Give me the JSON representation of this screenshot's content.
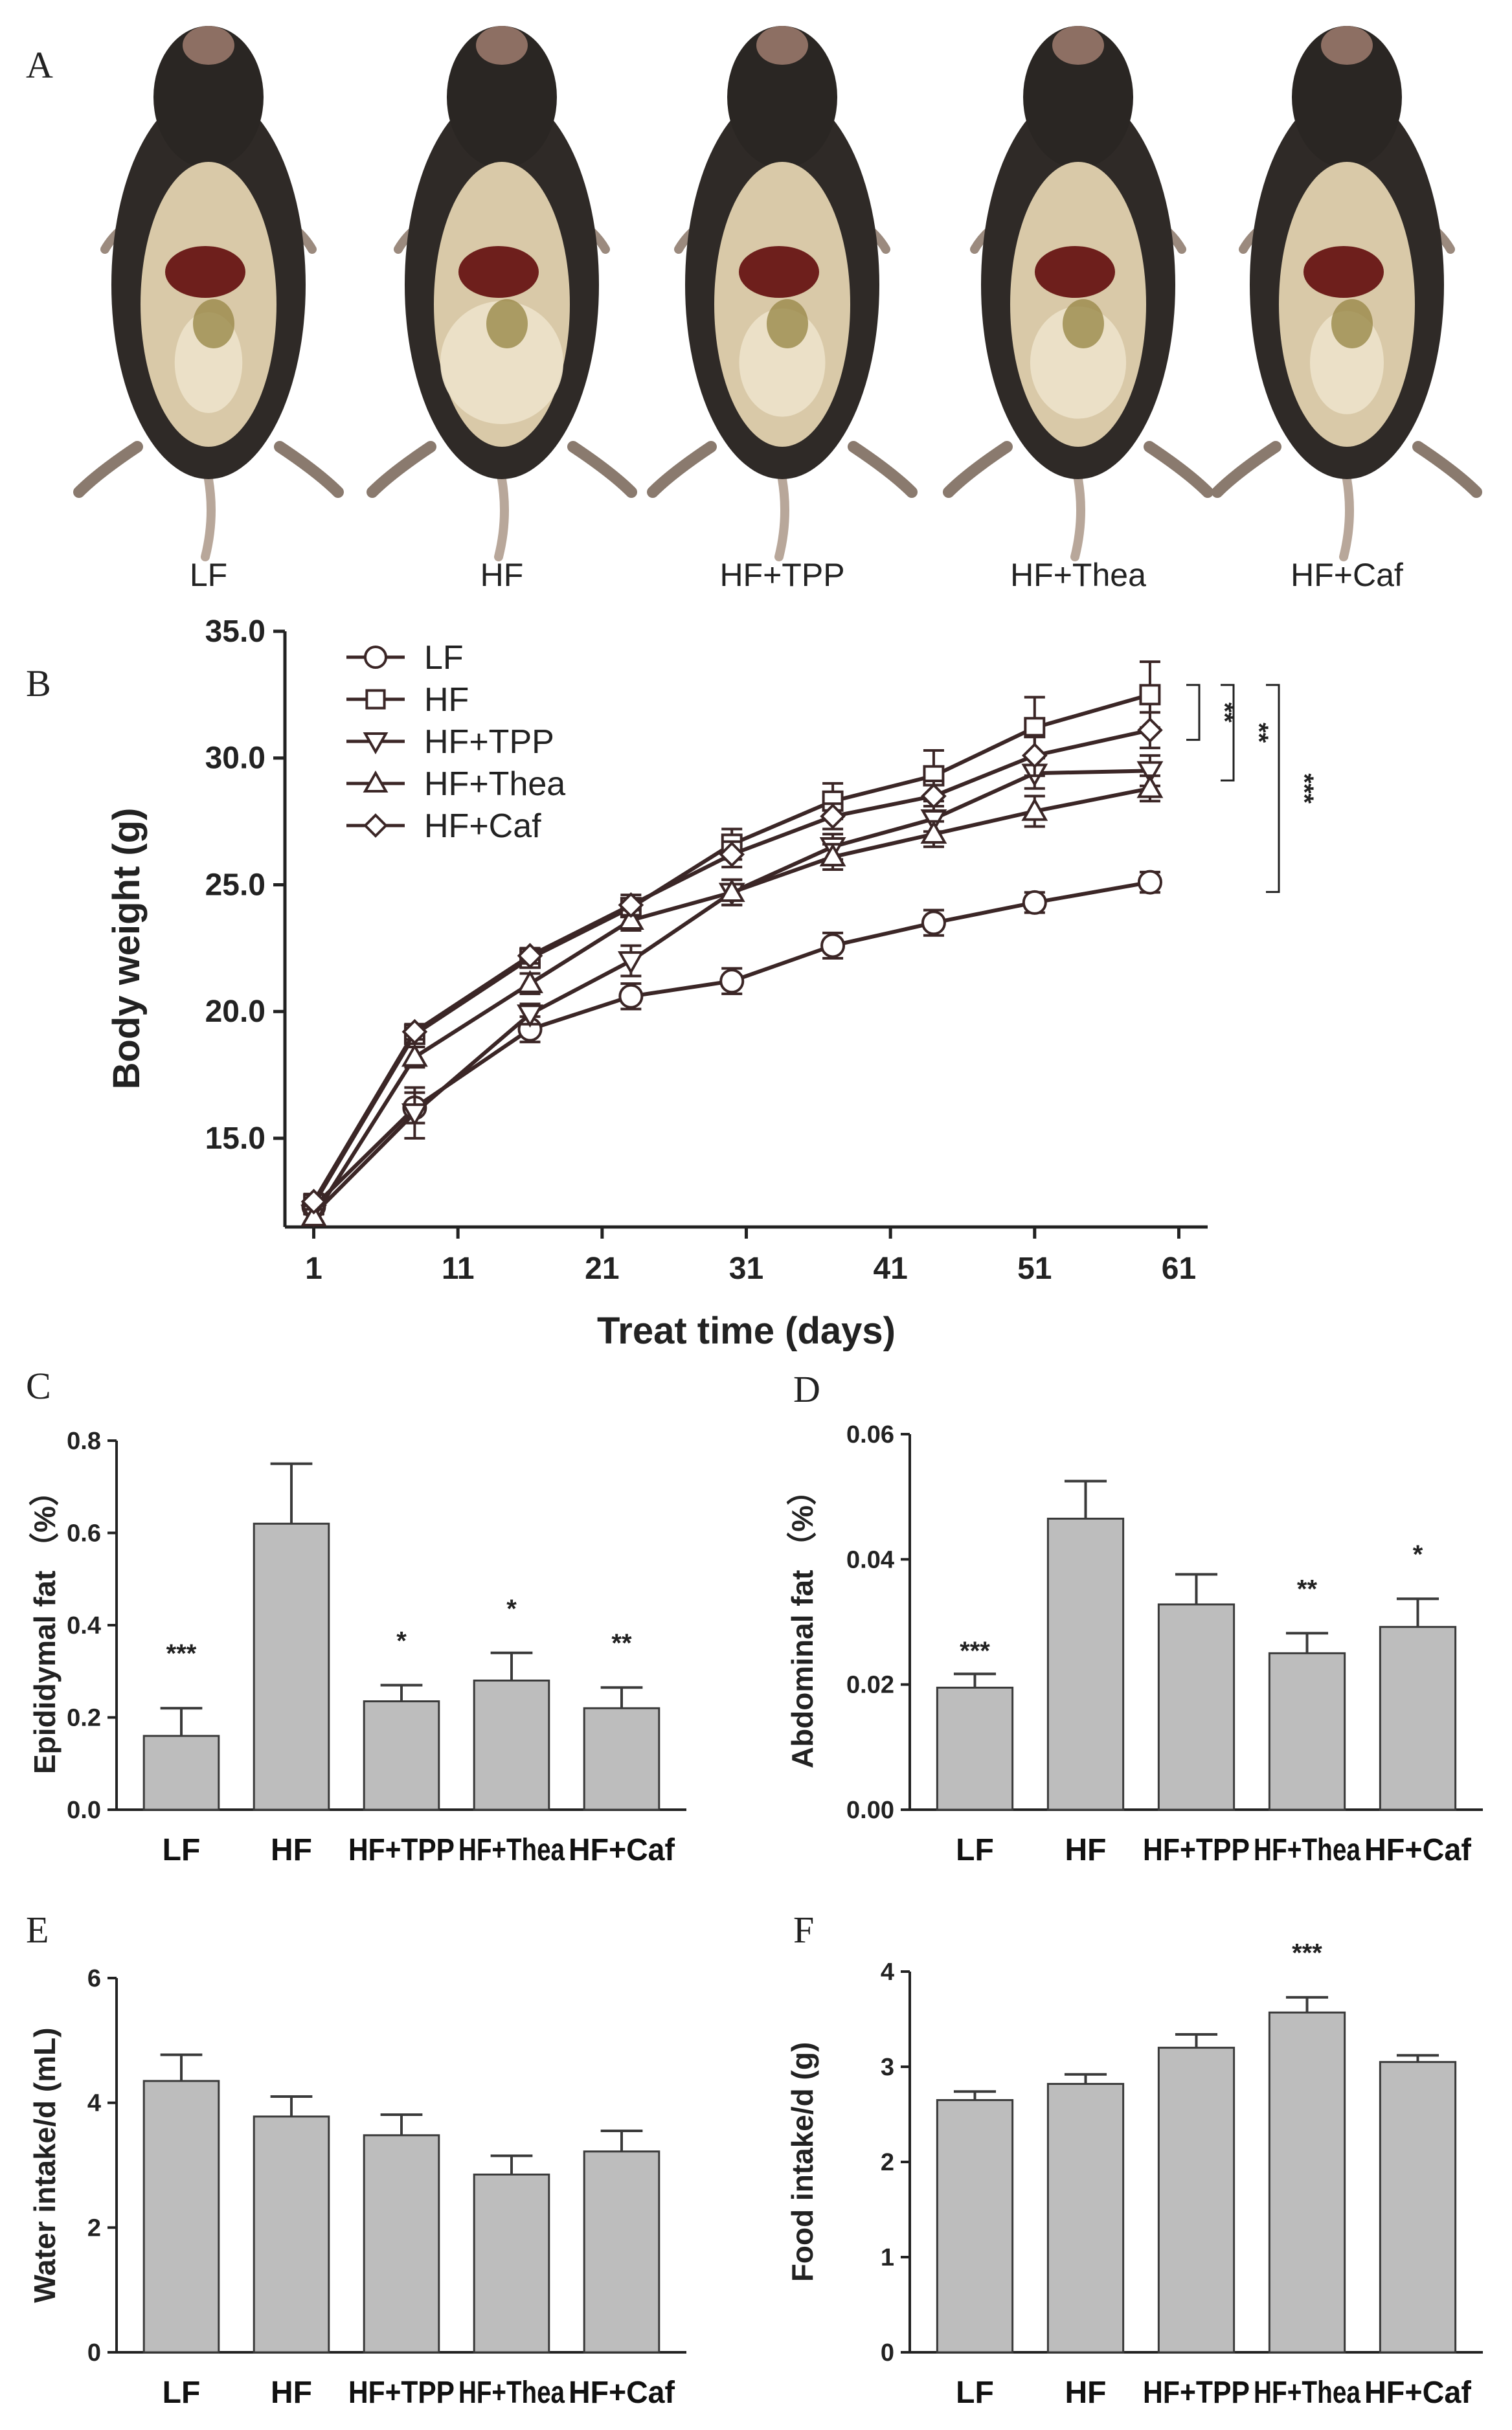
{
  "panel_letters": {
    "a": "A",
    "b": "B",
    "c": "C",
    "d": "D",
    "e": "E",
    "f": "F"
  },
  "photos": {
    "labels": [
      "LF",
      "HF",
      "HF+TPP",
      "HF+Thea",
      "HF+Caf"
    ]
  },
  "colors": {
    "bar_fill": "#bdbdbd",
    "bar_stroke": "#3a3a3a",
    "line": "#3b2626",
    "axis": "#222222"
  },
  "chart_data": [
    {
      "id": "B",
      "type": "line",
      "title": "",
      "xlabel": "Treat time (days)",
      "ylabel": "Body weight (g)",
      "xlim": [
        -1,
        63
      ],
      "ylim": [
        11.5,
        35.0
      ],
      "xticks": [
        "1",
        "11",
        "21",
        "31",
        "41",
        "51",
        "61"
      ],
      "xtick_values": [
        1,
        11,
        21,
        31,
        41,
        51,
        61
      ],
      "yticks": [
        "15.0",
        "20.0",
        "25.0",
        "30.0",
        "35.0"
      ],
      "ytick_values": [
        15,
        20,
        25,
        30,
        35
      ],
      "x": [
        1,
        8,
        16,
        23,
        30,
        37,
        44,
        51,
        59
      ],
      "series": [
        {
          "name": "LF",
          "marker": "circle",
          "values": [
            12.3,
            16.2,
            19.3,
            20.6,
            21.2,
            22.6,
            23.5,
            24.3,
            25.1
          ],
          "errors": [
            0.3,
            0.6,
            0.5,
            0.5,
            0.5,
            0.5,
            0.5,
            0.4,
            0.4
          ]
        },
        {
          "name": "HF",
          "marker": "square",
          "values": [
            12.4,
            19.1,
            22.1,
            24.1,
            26.6,
            28.3,
            29.3,
            31.2,
            32.5
          ],
          "errors": [
            0.3,
            0.3,
            0.3,
            0.3,
            0.6,
            0.7,
            1.0,
            1.2,
            1.3
          ]
        },
        {
          "name": "HF+TPP",
          "marker": "triangle-down",
          "values": [
            12.0,
            16.0,
            19.9,
            22.0,
            24.7,
            26.5,
            27.6,
            29.4,
            29.5
          ],
          "errors": [
            0.3,
            1.0,
            0.4,
            0.6,
            0.5,
            0.5,
            0.5,
            0.6,
            0.6
          ]
        },
        {
          "name": "HF+Thea",
          "marker": "triangle-up",
          "values": [
            11.9,
            18.2,
            21.1,
            23.6,
            24.7,
            26.1,
            27.0,
            27.9,
            28.8
          ],
          "errors": [
            0.3,
            0.4,
            0.4,
            0.4,
            0.5,
            0.5,
            0.5,
            0.6,
            0.5
          ]
        },
        {
          "name": "HF+Caf",
          "marker": "diamond",
          "values": [
            12.5,
            19.2,
            22.2,
            24.2,
            26.2,
            27.7,
            28.5,
            30.1,
            31.1
          ],
          "errors": [
            0.3,
            0.3,
            0.3,
            0.4,
            0.5,
            0.5,
            0.6,
            0.8,
            0.7
          ]
        }
      ],
      "significance": [
        {
          "text": "**",
          "from_series": "HF+Caf",
          "to_series": "HF"
        },
        {
          "text": "**",
          "from_series": "HF+TPP",
          "to_series": "HF"
        },
        {
          "text": "***",
          "from_series": "LF",
          "to_series": "HF"
        }
      ]
    },
    {
      "id": "C",
      "type": "bar",
      "ylabel": "Epididymal fat （%）",
      "ylim": [
        0,
        0.8
      ],
      "yticks": [
        "0.0",
        "0.2",
        "0.4",
        "0.6",
        "0.8"
      ],
      "ytick_values": [
        0,
        0.2,
        0.4,
        0.6,
        0.8
      ],
      "categories": [
        "LF",
        "HF",
        "HF+TPP",
        "HF+Thea",
        "HF+Caf"
      ],
      "values": [
        0.16,
        0.62,
        0.235,
        0.28,
        0.22
      ],
      "errors": [
        0.06,
        0.13,
        0.035,
        0.06,
        0.045
      ],
      "significance": [
        "***",
        "",
        "*",
        "*",
        "**"
      ]
    },
    {
      "id": "D",
      "type": "bar",
      "ylabel": "Abdominal  fat （%）",
      "ylim": [
        0,
        0.06
      ],
      "yticks": [
        "0.00",
        "0.02",
        "0.04",
        "0.06"
      ],
      "ytick_values": [
        0,
        0.02,
        0.04,
        0.06
      ],
      "categories": [
        "LF",
        "HF",
        "HF+TPP",
        "HF+Thea",
        "HF+Caf"
      ],
      "values": [
        0.0195,
        0.0465,
        0.0328,
        0.025,
        0.0292
      ],
      "errors": [
        0.0022,
        0.006,
        0.0048,
        0.0032,
        0.0045
      ],
      "significance": [
        "***",
        "",
        "",
        "**",
        "*"
      ]
    },
    {
      "id": "E",
      "type": "bar",
      "ylabel": "Water intake/d (mL)",
      "ylim": [
        0,
        6
      ],
      "yticks": [
        "0",
        "2",
        "4",
        "6"
      ],
      "ytick_values": [
        0,
        2,
        4,
        6
      ],
      "categories": [
        "LF",
        "HF",
        "HF+TPP",
        "HF+Thea",
        "HF+Caf"
      ],
      "values": [
        4.35,
        3.78,
        3.48,
        2.85,
        3.22
      ],
      "errors": [
        0.42,
        0.32,
        0.33,
        0.3,
        0.33
      ],
      "significance": [
        "",
        "",
        "",
        "",
        ""
      ]
    },
    {
      "id": "F",
      "type": "bar",
      "ylabel": "Food intake/d (g)",
      "ylim": [
        0,
        4
      ],
      "yticks": [
        "0",
        "1",
        "2",
        "3",
        "4"
      ],
      "ytick_values": [
        0,
        1,
        2,
        3,
        4
      ],
      "categories": [
        "LF",
        "HF",
        "HF+TPP",
        "HF+Thea",
        "HF+Caf"
      ],
      "values": [
        2.65,
        2.82,
        3.2,
        3.57,
        3.05
      ],
      "errors": [
        0.09,
        0.1,
        0.14,
        0.16,
        0.07
      ],
      "significance": [
        "",
        "",
        "",
        "***",
        ""
      ]
    }
  ]
}
